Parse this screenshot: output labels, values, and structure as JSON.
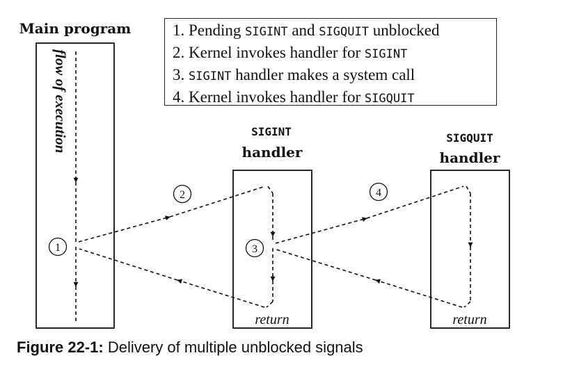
{
  "main_program": {
    "title": "Main program",
    "flow_label": "flow of execution"
  },
  "legend": {
    "items": [
      {
        "num": "1.",
        "parts": [
          "Pending ",
          "SIGINT",
          " and ",
          "SIGQUIT",
          " unblocked"
        ]
      },
      {
        "num": "2.",
        "parts": [
          "Kernel invokes handler for ",
          "SIGINT"
        ]
      },
      {
        "num": "3.",
        "parts": [
          "",
          "SIGINT",
          " handler makes a system call"
        ]
      },
      {
        "num": "4.",
        "parts": [
          "Kernel invokes handler for ",
          "SIGQUIT"
        ]
      }
    ]
  },
  "sigint_handler": {
    "signal": "SIGINT",
    "label": "handler",
    "return_label": "return"
  },
  "sigquit_handler": {
    "signal": "SIGQUIT",
    "label": "handler",
    "return_label": "return"
  },
  "markers": {
    "m1": "1",
    "m2": "2",
    "m3": "3",
    "m4": "4"
  },
  "caption": {
    "label": "Figure 22-1:",
    "text": " Delivery of multiple unblocked signals"
  }
}
